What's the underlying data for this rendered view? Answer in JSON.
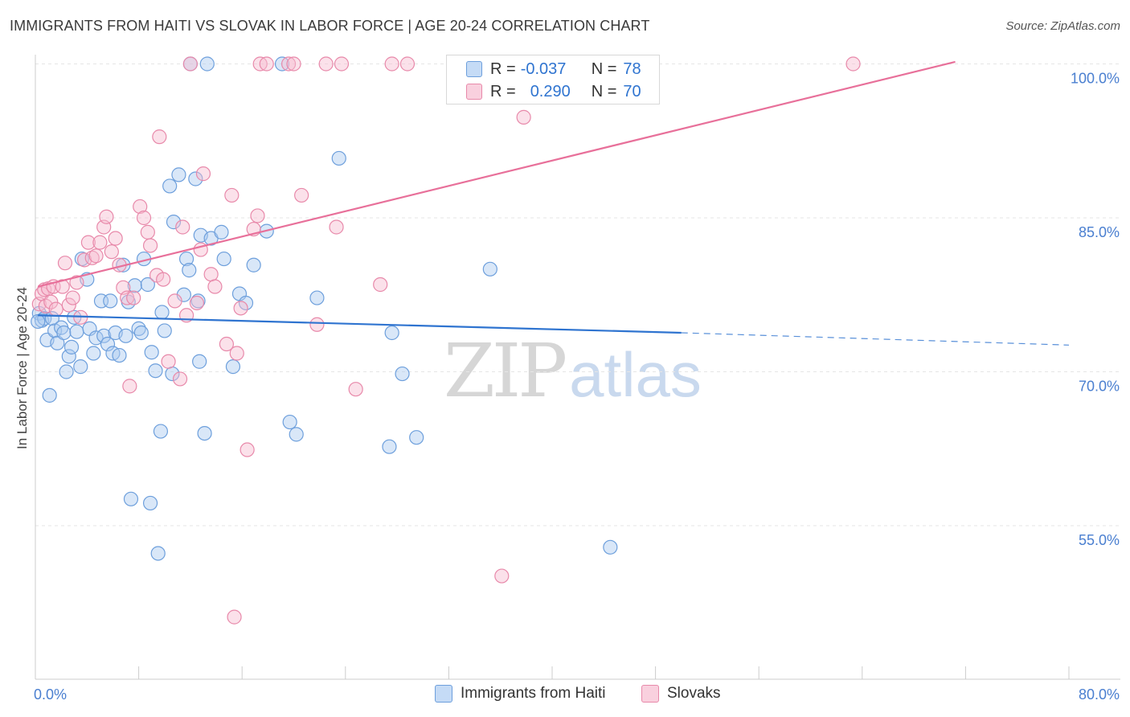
{
  "header": {
    "title": "IMMIGRANTS FROM HAITI VS SLOVAK IN LABOR FORCE | AGE 20-24 CORRELATION CHART",
    "source": "Source: ZipAtlas.com"
  },
  "watermark": {
    "zip": "ZIP",
    "atlas": "atlas"
  },
  "legend_top": {
    "r_label": "R =",
    "n_label": "N =",
    "rows": [
      {
        "r": "-0.037",
        "n": "78"
      },
      {
        "r": "0.290",
        "n": "70"
      }
    ]
  },
  "legend_bottom": {
    "items": [
      "Immigrants from Haiti",
      "Slovaks"
    ]
  },
  "colors": {
    "blue_fill": "#aac9f0",
    "blue_stroke": "#6d9fdc",
    "blue_line": "#2f74d0",
    "pink_fill": "#f6bdd0",
    "pink_stroke": "#e889aa",
    "pink_line": "#e8709a",
    "axis_label": "#4a7fd0",
    "grid": "#e6e6e6"
  },
  "chart_data": {
    "type": "scatter",
    "title": "IMMIGRANTS FROM HAITI VS SLOVAK IN LABOR FORCE | AGE 20-24 CORRELATION CHART",
    "xlabel": "",
    "ylabel": "In Labor Force | Age 20-24",
    "xlim": [
      0,
      80
    ],
    "ylim": [
      40,
      102
    ],
    "x_tick_labels": [
      {
        "value": 0,
        "label": "0.0%"
      },
      {
        "value": 80,
        "label": "80.0%"
      }
    ],
    "y_tick_labels": [
      {
        "value": 100,
        "label": "100.0%"
      },
      {
        "value": 85,
        "label": "85.0%"
      },
      {
        "value": 70,
        "label": "70.0%"
      },
      {
        "value": 55,
        "label": "55.0%"
      }
    ],
    "x_minor_ticks": [
      0,
      8,
      16,
      24,
      32,
      40,
      48,
      56,
      64,
      72,
      80
    ],
    "grid": true,
    "series": [
      {
        "name": "Immigrants from Haiti",
        "color": "blue",
        "r": -0.037,
        "n": 78,
        "trend": {
          "x0": 0.2,
          "y0": 75.5,
          "x1": 50,
          "y1": 73.8,
          "dash_x1": 80,
          "dash_y1": 72.6
        },
        "points": [
          [
            0.3,
            75.7
          ],
          [
            0.5,
            75.0
          ],
          [
            0.7,
            75.2
          ],
          [
            0.9,
            73.1
          ],
          [
            1.1,
            67.7
          ],
          [
            1.3,
            75.2
          ],
          [
            1.5,
            74.0
          ],
          [
            1.7,
            72.8
          ],
          [
            2.0,
            74.3
          ],
          [
            2.2,
            73.8
          ],
          [
            2.4,
            70.0
          ],
          [
            2.6,
            71.5
          ],
          [
            2.8,
            72.4
          ],
          [
            3.0,
            75.3
          ],
          [
            3.2,
            73.9
          ],
          [
            3.5,
            70.5
          ],
          [
            3.6,
            81.0
          ],
          [
            4.0,
            79.0
          ],
          [
            4.2,
            74.2
          ],
          [
            4.5,
            71.8
          ],
          [
            4.7,
            73.3
          ],
          [
            5.1,
            76.9
          ],
          [
            5.3,
            73.5
          ],
          [
            5.6,
            72.7
          ],
          [
            5.8,
            76.9
          ],
          [
            6.0,
            71.8
          ],
          [
            6.2,
            73.8
          ],
          [
            6.5,
            71.6
          ],
          [
            6.8,
            80.4
          ],
          [
            7.0,
            73.5
          ],
          [
            7.2,
            76.8
          ],
          [
            7.4,
            57.6
          ],
          [
            7.7,
            78.4
          ],
          [
            8.0,
            74.2
          ],
          [
            8.2,
            73.8
          ],
          [
            8.4,
            81.0
          ],
          [
            8.7,
            78.5
          ],
          [
            8.9,
            57.2
          ],
          [
            9.0,
            71.9
          ],
          [
            9.3,
            70.1
          ],
          [
            9.5,
            52.3
          ],
          [
            9.7,
            64.2
          ],
          [
            9.8,
            75.8
          ],
          [
            10.0,
            74.0
          ],
          [
            10.4,
            88.1
          ],
          [
            10.6,
            69.8
          ],
          [
            10.7,
            84.6
          ],
          [
            11.1,
            89.2
          ],
          [
            11.5,
            77.5
          ],
          [
            11.7,
            81.0
          ],
          [
            11.9,
            79.9
          ],
          [
            12.0,
            100.0
          ],
          [
            12.4,
            88.8
          ],
          [
            12.6,
            76.9
          ],
          [
            12.7,
            71.0
          ],
          [
            12.8,
            83.3
          ],
          [
            13.1,
            64.0
          ],
          [
            13.3,
            100.0
          ],
          [
            13.6,
            83.0
          ],
          [
            14.4,
            83.6
          ],
          [
            14.6,
            81.0
          ],
          [
            15.3,
            70.5
          ],
          [
            15.8,
            77.6
          ],
          [
            16.3,
            76.7
          ],
          [
            16.9,
            80.4
          ],
          [
            17.9,
            83.7
          ],
          [
            19.1,
            100.0
          ],
          [
            19.7,
            65.1
          ],
          [
            20.2,
            63.9
          ],
          [
            21.8,
            77.2
          ],
          [
            23.5,
            90.8
          ],
          [
            27.4,
            62.7
          ],
          [
            27.6,
            73.8
          ],
          [
            28.4,
            69.8
          ],
          [
            29.5,
            63.6
          ],
          [
            35.2,
            80.0
          ],
          [
            44.5,
            52.9
          ],
          [
            0.2,
            74.9
          ]
        ]
      },
      {
        "name": "Slovaks",
        "color": "pink",
        "r": 0.29,
        "n": 70,
        "trend": {
          "x0": 0.2,
          "y0": 78.3,
          "x1": 71.2,
          "y1": 100.2
        },
        "points": [
          [
            0.3,
            76.6
          ],
          [
            0.5,
            77.6
          ],
          [
            0.7,
            78.0
          ],
          [
            0.8,
            76.4
          ],
          [
            1.0,
            78.1
          ],
          [
            1.2,
            76.8
          ],
          [
            1.4,
            78.3
          ],
          [
            1.6,
            76.1
          ],
          [
            2.1,
            78.3
          ],
          [
            2.3,
            80.6
          ],
          [
            2.6,
            76.5
          ],
          [
            2.9,
            77.2
          ],
          [
            3.2,
            78.7
          ],
          [
            3.5,
            75.3
          ],
          [
            3.8,
            80.9
          ],
          [
            4.1,
            82.6
          ],
          [
            4.4,
            81.1
          ],
          [
            4.7,
            81.3
          ],
          [
            5.0,
            82.6
          ],
          [
            5.3,
            84.1
          ],
          [
            5.5,
            85.1
          ],
          [
            5.9,
            81.7
          ],
          [
            6.2,
            83.0
          ],
          [
            6.5,
            80.4
          ],
          [
            6.8,
            78.2
          ],
          [
            7.1,
            77.2
          ],
          [
            7.3,
            68.6
          ],
          [
            7.6,
            77.2
          ],
          [
            8.1,
            86.1
          ],
          [
            8.4,
            85.0
          ],
          [
            8.7,
            83.6
          ],
          [
            8.9,
            82.3
          ],
          [
            9.4,
            79.4
          ],
          [
            9.6,
            92.9
          ],
          [
            9.9,
            79.0
          ],
          [
            10.3,
            71.0
          ],
          [
            10.8,
            76.9
          ],
          [
            11.2,
            69.3
          ],
          [
            11.4,
            84.1
          ],
          [
            11.7,
            75.5
          ],
          [
            12.0,
            100.0
          ],
          [
            12.5,
            76.7
          ],
          [
            12.8,
            81.9
          ],
          [
            13.0,
            89.3
          ],
          [
            13.6,
            79.5
          ],
          [
            13.9,
            78.3
          ],
          [
            14.8,
            72.7
          ],
          [
            15.2,
            87.2
          ],
          [
            15.6,
            71.8
          ],
          [
            15.9,
            76.2
          ],
          [
            16.4,
            62.4
          ],
          [
            16.9,
            83.9
          ],
          [
            17.2,
            85.2
          ],
          [
            17.4,
            100.0
          ],
          [
            17.9,
            100.0
          ],
          [
            19.6,
            100.0
          ],
          [
            20.0,
            100.0
          ],
          [
            20.6,
            87.2
          ],
          [
            21.8,
            74.6
          ],
          [
            22.5,
            100.0
          ],
          [
            23.3,
            84.1
          ],
          [
            23.7,
            100.0
          ],
          [
            24.8,
            68.3
          ],
          [
            26.7,
            78.5
          ],
          [
            27.6,
            100.0
          ],
          [
            28.8,
            100.0
          ],
          [
            36.1,
            50.1
          ],
          [
            37.8,
            94.8
          ],
          [
            63.3,
            100.0
          ],
          [
            15.4,
            46.1
          ]
        ]
      }
    ]
  }
}
